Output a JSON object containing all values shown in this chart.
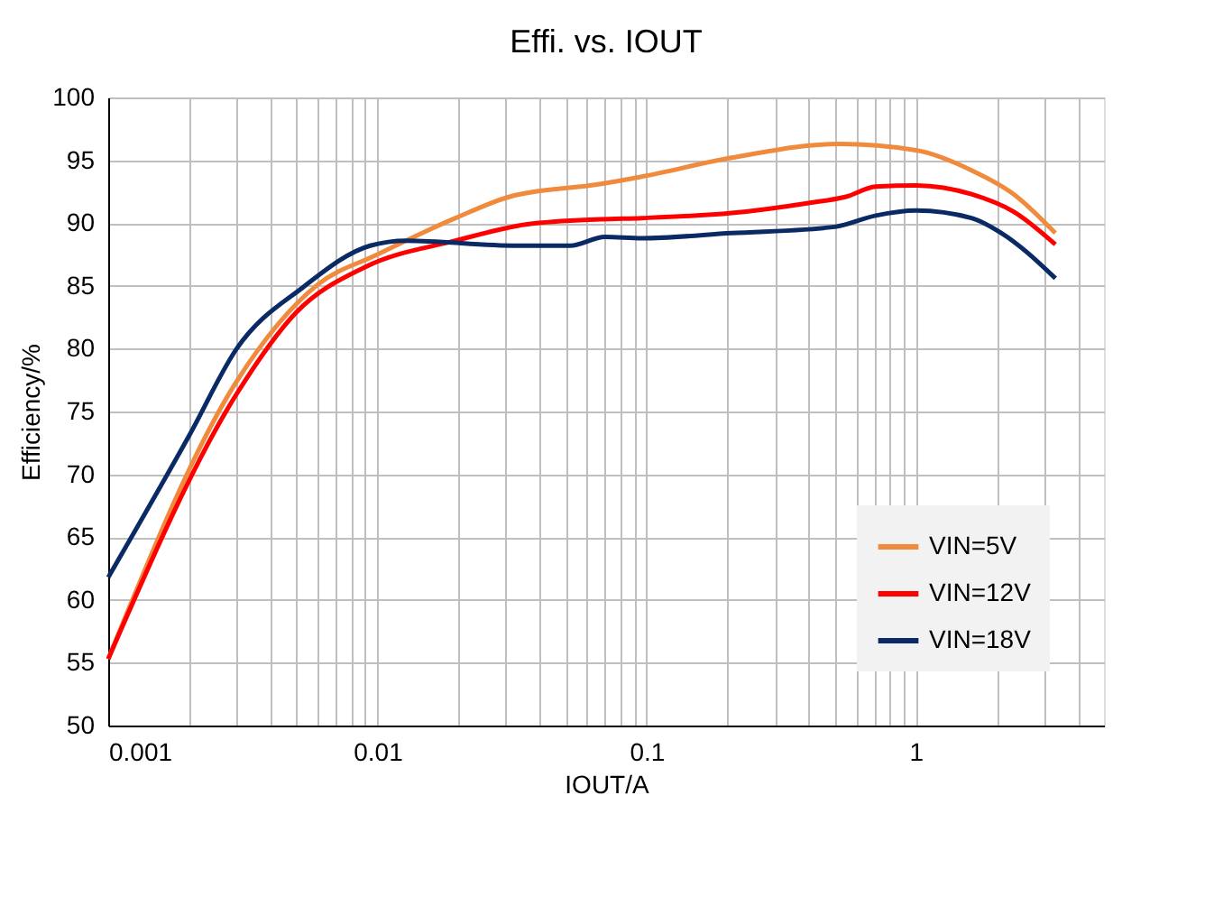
{
  "chart_data": {
    "type": "line",
    "title": "Effi. vs. IOUT",
    "xlabel": "IOUT/A",
    "ylabel": "Efficiency/%",
    "xlim": [
      0.001,
      5
    ],
    "ylim": [
      50,
      100
    ],
    "xticks": [
      0.001,
      {
        "value": 0.002,
        "label": null
      },
      {
        "value": 0.003,
        "label": null
      },
      {
        "value": 0.004,
        "label": null
      },
      {
        "value": 0.005,
        "label": null
      },
      {
        "value": 0.006,
        "label": null
      },
      {
        "value": 0.007,
        "label": null
      },
      {
        "value": 0.008,
        "label": null
      },
      {
        "value": 0.009,
        "label": null
      },
      0.01,
      {
        "value": 0.02,
        "label": null
      },
      {
        "value": 0.03,
        "label": null
      },
      {
        "value": 0.04,
        "label": null
      },
      {
        "value": 0.05,
        "label": null
      },
      {
        "value": 0.06,
        "label": null
      },
      {
        "value": 0.07,
        "label": null
      },
      {
        "value": 0.08,
        "label": null
      },
      {
        "value": 0.09,
        "label": null
      },
      0.1,
      {
        "value": 0.2,
        "label": null
      },
      {
        "value": 0.3,
        "label": null
      },
      {
        "value": 0.4,
        "label": null
      },
      {
        "value": 0.5,
        "label": null
      },
      {
        "value": 0.6,
        "label": null
      },
      {
        "value": 0.7,
        "label": null
      },
      {
        "value": 0.8,
        "label": null
      },
      {
        "value": 0.9,
        "label": null
      },
      1,
      {
        "value": 2,
        "label": null
      },
      {
        "value": 3,
        "label": null
      },
      {
        "value": 4,
        "label": null
      }
    ],
    "yticks": [
      50,
      55,
      60,
      65,
      70,
      75,
      80,
      85,
      90,
      95,
      100
    ],
    "log": "x",
    "grid": true,
    "legend": "bottom right",
    "marker": "none",
    "line_style": "solid",
    "series": [
      {
        "name": "VIN=5V",
        "color": "#f08a3c",
        "x": [
          0.001,
          0.003,
          0.006,
          0.01,
          0.0195,
          0.031,
          0.067,
          0.096,
          0.207,
          0.52,
          1,
          1.61,
          2.31,
          3.3
        ],
        "values": [
          55.3,
          77.4,
          85.1,
          87.5,
          90.4,
          92.1,
          93.1,
          93.7,
          95.2,
          96.3,
          95.8,
          94.2,
          92.3,
          89.2
        ]
      },
      {
        "name": "VIN=12V",
        "color": "#ff0000",
        "x": [
          0.001,
          0.003,
          0.005,
          0.009,
          0.0195,
          0.036,
          0.067,
          0.096,
          0.207,
          0.4,
          0.55,
          0.71,
          1,
          1.61,
          2.31,
          3.3
        ],
        "values": [
          55.3,
          76.4,
          82.9,
          86.5,
          88.6,
          89.9,
          90.3,
          90.4,
          90.8,
          91.6,
          92.1,
          92.9,
          93.0,
          92.3,
          90.9,
          88.3
        ]
      },
      {
        "name": "VIN=18V",
        "color": "#0a2a66",
        "x": [
          0.001,
          0.002,
          0.003,
          0.0053,
          0.0094,
          0.0128,
          0.033,
          0.052,
          0.07,
          0.096,
          0.207,
          0.5,
          0.71,
          1,
          1.61,
          2.08,
          3.3
        ],
        "values": [
          61.8,
          73.1,
          80.0,
          84.9,
          88.2,
          88.6,
          88.2,
          88.2,
          88.9,
          88.8,
          89.2,
          89.7,
          90.6,
          91.0,
          90.4,
          89.2,
          85.6
        ]
      }
    ]
  }
}
